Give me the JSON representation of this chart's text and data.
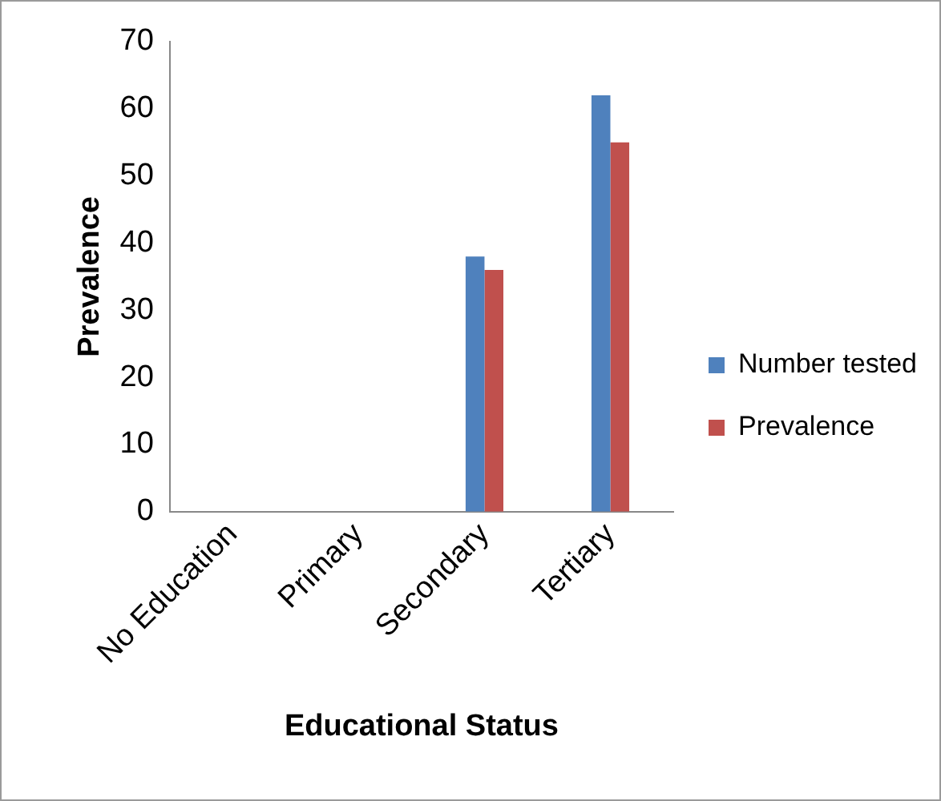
{
  "chart_data": {
    "type": "bar",
    "xlabel": "Educational Status",
    "ylabel": "Prevalence",
    "categories": [
      "No Education",
      "Primary",
      "Secondary",
      "Tertiary"
    ],
    "series": [
      {
        "name": "Number tested",
        "color": "#4f81bd",
        "values": [
          0,
          0,
          38,
          62
        ]
      },
      {
        "name": "Prevalence",
        "color": "#c0504d",
        "values": [
          0,
          0,
          36,
          55
        ]
      }
    ],
    "ylim": [
      0,
      70
    ],
    "yticks": [
      0,
      10,
      20,
      30,
      40,
      50,
      60,
      70
    ],
    "grid": false,
    "legend": "right"
  }
}
